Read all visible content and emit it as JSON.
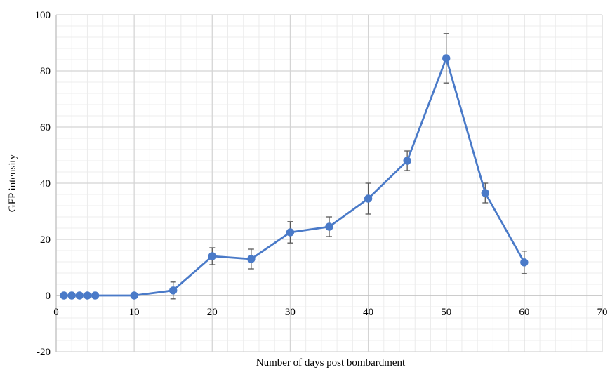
{
  "chart_data": {
    "type": "line",
    "title": "",
    "xlabel": "Number of days post bombardment",
    "ylabel": "GFP intensity",
    "xlim": [
      0,
      70
    ],
    "ylim": [
      -20,
      100
    ],
    "x_ticks": [
      0,
      10,
      20,
      30,
      40,
      50,
      60,
      70
    ],
    "y_ticks": [
      -20,
      0,
      20,
      40,
      60,
      80,
      100
    ],
    "x_tick_labels": [
      "0",
      "10",
      "20",
      "30",
      "40",
      "50",
      "60",
      "70"
    ],
    "y_tick_labels": [
      "-20",
      "0",
      "20",
      "40",
      "60",
      "80",
      "100"
    ],
    "grid": "major and minor",
    "legend": "none",
    "series": [
      {
        "color": "#4a7ac8",
        "x": [
          1,
          2,
          3,
          4,
          5,
          10,
          15,
          20,
          25,
          30,
          35,
          40,
          45,
          50,
          55,
          60
        ],
        "y": [
          0,
          0,
          0,
          0,
          0,
          0,
          1.8,
          14,
          13,
          22.5,
          24.5,
          34.5,
          48,
          84.5,
          36.5,
          11.8
        ],
        "error": [
          0,
          0,
          0,
          0,
          0,
          0,
          3.0,
          3.0,
          3.5,
          3.8,
          3.5,
          5.5,
          3.5,
          8.8,
          3.5,
          4.0
        ]
      }
    ]
  }
}
